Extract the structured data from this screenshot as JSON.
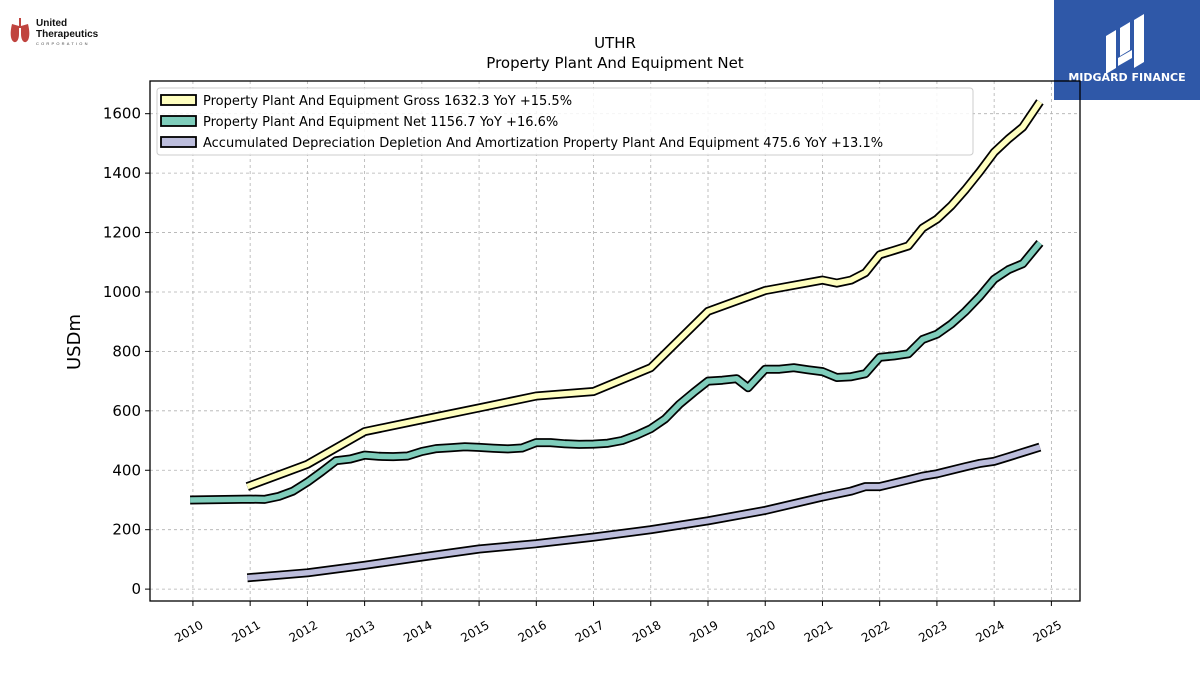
{
  "brand": {
    "left_logo_line1": "United",
    "left_logo_line2": "Therapeutics",
    "left_logo_line3": "CORPORATION",
    "right_logo_text": "MIDGARD FINANCE"
  },
  "chart_data": {
    "type": "line",
    "title": "UTHR",
    "subtitle": "Property Plant And Equipment Net",
    "xlabel": "",
    "ylabel": "USDm",
    "xlim": [
      2009.25,
      2025.5
    ],
    "ylim": [
      -40,
      1710
    ],
    "x_ticks": [
      "2010",
      "2011",
      "2012",
      "2013",
      "2014",
      "2015",
      "2016",
      "2017",
      "2018",
      "2019",
      "2020",
      "2021",
      "2022",
      "2023",
      "2024",
      "2025"
    ],
    "y_ticks": [
      0,
      200,
      400,
      600,
      800,
      1000,
      1200,
      1400,
      1600
    ],
    "grid": true,
    "legend_position": "top-left",
    "series": [
      {
        "name": "Property Plant And Equipment Gross",
        "legend_label": "Property Plant And Equipment Gross  1632.3 YoY +15.5%",
        "color": "#ffffbf",
        "points": [
          [
            2010.95,
            345
          ],
          [
            2012.0,
            420
          ],
          [
            2013.0,
            530
          ],
          [
            2014.0,
            570
          ],
          [
            2015.0,
            610
          ],
          [
            2016.0,
            650
          ],
          [
            2017.0,
            665
          ],
          [
            2018.0,
            745
          ],
          [
            2019.0,
            935
          ],
          [
            2020.0,
            1005
          ],
          [
            2021.0,
            1040
          ],
          [
            2021.25,
            1030
          ],
          [
            2021.5,
            1040
          ],
          [
            2021.75,
            1065
          ],
          [
            2022.0,
            1125
          ],
          [
            2022.25,
            1140
          ],
          [
            2022.5,
            1155
          ],
          [
            2022.75,
            1215
          ],
          [
            2023.0,
            1245
          ],
          [
            2023.25,
            1290
          ],
          [
            2023.5,
            1345
          ],
          [
            2023.75,
            1405
          ],
          [
            2024.0,
            1470
          ],
          [
            2024.25,
            1515
          ],
          [
            2024.5,
            1555
          ],
          [
            2024.8,
            1640
          ]
        ]
      },
      {
        "name": "Property Plant And Equipment Net",
        "legend_label": "Property Plant And Equipment Net  1156.7 YoY +16.6%",
        "color": "#7fcdbb",
        "points": [
          [
            2009.95,
            300
          ],
          [
            2011.0,
            303
          ],
          [
            2011.25,
            302
          ],
          [
            2011.5,
            312
          ],
          [
            2011.75,
            330
          ],
          [
            2012.0,
            360
          ],
          [
            2012.25,
            395
          ],
          [
            2012.5,
            432
          ],
          [
            2012.75,
            438
          ],
          [
            2013.0,
            451
          ],
          [
            2013.25,
            447
          ],
          [
            2013.5,
            446
          ],
          [
            2013.75,
            448
          ],
          [
            2014.0,
            463
          ],
          [
            2014.25,
            473
          ],
          [
            2014.5,
            476
          ],
          [
            2014.75,
            479
          ],
          [
            2015.0,
            477
          ],
          [
            2015.25,
            474
          ],
          [
            2015.5,
            472
          ],
          [
            2015.75,
            475
          ],
          [
            2016.0,
            493
          ],
          [
            2016.25,
            493
          ],
          [
            2016.5,
            489
          ],
          [
            2016.75,
            487
          ],
          [
            2017.0,
            488
          ],
          [
            2017.25,
            491
          ],
          [
            2017.5,
            500
          ],
          [
            2017.75,
            518
          ],
          [
            2018.0,
            540
          ],
          [
            2018.25,
            573
          ],
          [
            2018.5,
            622
          ],
          [
            2018.75,
            662
          ],
          [
            2019.0,
            700
          ],
          [
            2019.25,
            703
          ],
          [
            2019.5,
            708
          ],
          [
            2019.7,
            678
          ],
          [
            2020.0,
            740
          ],
          [
            2020.25,
            740
          ],
          [
            2020.5,
            745
          ],
          [
            2020.75,
            738
          ],
          [
            2021.0,
            732
          ],
          [
            2021.25,
            712
          ],
          [
            2021.5,
            715
          ],
          [
            2021.75,
            725
          ],
          [
            2022.0,
            780
          ],
          [
            2022.25,
            785
          ],
          [
            2022.5,
            792
          ],
          [
            2022.75,
            840
          ],
          [
            2023.0,
            858
          ],
          [
            2023.25,
            892
          ],
          [
            2023.5,
            935
          ],
          [
            2023.75,
            985
          ],
          [
            2024.0,
            1043
          ],
          [
            2024.25,
            1075
          ],
          [
            2024.5,
            1095
          ],
          [
            2024.8,
            1165
          ]
        ]
      },
      {
        "name": "Accumulated Depreciation Depletion And Amortization Property Plant And Equipment",
        "legend_label": "Accumulated Depreciation Depletion And Amortization Property Plant And Equipment  475.6 YoY +13.1%",
        "color": "#bcbddc",
        "points": [
          [
            2010.95,
            38
          ],
          [
            2012.0,
            55
          ],
          [
            2013.0,
            80
          ],
          [
            2014.0,
            108
          ],
          [
            2015.0,
            135
          ],
          [
            2016.0,
            153
          ],
          [
            2017.0,
            175
          ],
          [
            2018.0,
            200
          ],
          [
            2019.0,
            230
          ],
          [
            2020.0,
            265
          ],
          [
            2021.0,
            310
          ],
          [
            2021.5,
            330
          ],
          [
            2021.75,
            345
          ],
          [
            2022.0,
            345
          ],
          [
            2022.5,
            368
          ],
          [
            2022.75,
            380
          ],
          [
            2023.0,
            388
          ],
          [
            2023.5,
            412
          ],
          [
            2023.75,
            423
          ],
          [
            2024.0,
            430
          ],
          [
            2024.25,
            445
          ],
          [
            2024.5,
            460
          ],
          [
            2024.8,
            478
          ]
        ]
      }
    ]
  }
}
